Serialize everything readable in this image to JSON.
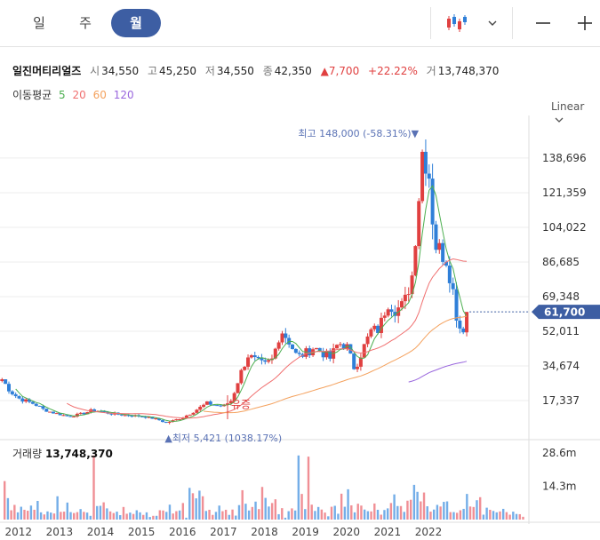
{
  "tabs": [
    {
      "label": "일",
      "active": false
    },
    {
      "label": "주",
      "active": false
    },
    {
      "label": "월",
      "active": true
    }
  ],
  "toolbar": {
    "chart_type_icon": "candlestick-icon",
    "dropdown_icon": "chevron-down-icon",
    "zoom_out_icon": "minus-icon",
    "zoom_in_icon": "plus-icon"
  },
  "stock": {
    "name": "일진머티리얼즈",
    "open_label": "시",
    "open": "34,550",
    "high_label": "고",
    "high": "45,250",
    "low_label": "저",
    "low": "34,550",
    "close_label": "종",
    "close": "42,350",
    "change": "7,700",
    "change_pct": "+22.22%",
    "volume_label": "거",
    "volume": "13,748,370"
  },
  "ma": {
    "label": "이동평균",
    "p5": "5",
    "p20": "20",
    "p60": "60",
    "p120": "120"
  },
  "scale": {
    "label": "Linear"
  },
  "colors": {
    "up": "#e04040",
    "down": "#2f7fd8",
    "ma5": "#4caf50",
    "ma20": "#f07070",
    "ma60": "#f4a15d",
    "ma120": "#9966dd",
    "accent": "#3d5ea3"
  },
  "annotations": {
    "high": "최고 148,000 (-58.31%)",
    "low": "최저 5,421 (1038.17%)",
    "rights": "유증",
    "current_price": "61,700"
  },
  "chart_data": {
    "type": "candlestick",
    "title": "일진머티리얼즈",
    "x_ticks": [
      "2012",
      "2013",
      "2014",
      "2015",
      "2016",
      "2017",
      "2018",
      "2019",
      "2020",
      "2021",
      "2022"
    ],
    "y_ticks": [
      17337,
      34674,
      52011,
      69348,
      86685,
      104022,
      121359,
      138696
    ],
    "y_tick_labels": [
      "17,337",
      "34,674",
      "52,011",
      "69,348",
      "86,685",
      "104,022",
      "121,359",
      "138,696"
    ],
    "ylim": [
      0,
      160000
    ],
    "x_range": [
      2011.55,
      2024.45
    ],
    "monthly_close": [
      [
        2011.6,
        28000
      ],
      [
        2011.8,
        22000
      ],
      [
        2012.0,
        18500
      ],
      [
        2012.2,
        17000
      ],
      [
        2012.4,
        15500
      ],
      [
        2012.6,
        13000
      ],
      [
        2012.8,
        11500
      ],
      [
        2013.0,
        10500
      ],
      [
        2013.2,
        9500
      ],
      [
        2013.4,
        10000
      ],
      [
        2013.6,
        11000
      ],
      [
        2013.8,
        12500
      ],
      [
        2014.0,
        12000
      ],
      [
        2014.2,
        11000
      ],
      [
        2014.4,
        10500
      ],
      [
        2014.6,
        10000
      ],
      [
        2014.8,
        9800
      ],
      [
        2015.0,
        9500
      ],
      [
        2015.2,
        8800
      ],
      [
        2015.4,
        7800
      ],
      [
        2015.6,
        6200
      ],
      [
        2015.8,
        7500
      ],
      [
        2016.0,
        8800
      ],
      [
        2016.2,
        11000
      ],
      [
        2016.4,
        13500
      ],
      [
        2016.6,
        16000
      ],
      [
        2016.8,
        15000
      ],
      [
        2017.0,
        14500
      ],
      [
        2017.2,
        17500
      ],
      [
        2017.4,
        30000
      ],
      [
        2017.6,
        40000
      ],
      [
        2017.8,
        37000
      ],
      [
        2018.0,
        35000
      ],
      [
        2018.2,
        38000
      ],
      [
        2018.4,
        53000
      ],
      [
        2018.6,
        47000
      ],
      [
        2018.8,
        39000
      ],
      [
        2019.0,
        41000
      ],
      [
        2019.2,
        44000
      ],
      [
        2019.4,
        41500
      ],
      [
        2019.6,
        38500
      ],
      [
        2019.8,
        46000
      ],
      [
        2020.0,
        45000
      ],
      [
        2020.2,
        33000
      ],
      [
        2020.4,
        43000
      ],
      [
        2020.6,
        52000
      ],
      [
        2020.8,
        53000
      ],
      [
        2021.0,
        67000
      ],
      [
        2021.2,
        63000
      ],
      [
        2021.4,
        65000
      ],
      [
        2021.6,
        80000
      ],
      [
        2021.75,
        116000
      ],
      [
        2021.85,
        142000
      ],
      [
        2022.0,
        135000
      ],
      [
        2022.15,
        96000
      ],
      [
        2022.3,
        92000
      ],
      [
        2022.45,
        88000
      ],
      [
        2022.6,
        72000
      ],
      [
        2022.7,
        58000
      ],
      [
        2022.8,
        52000
      ],
      [
        2022.9,
        56000
      ],
      [
        2023.0,
        61700
      ]
    ],
    "ma_series": [
      {
        "name": "5",
        "period": 5
      },
      {
        "name": "20",
        "period": 20
      },
      {
        "name": "60",
        "period": 60
      },
      {
        "name": "120",
        "period": 120
      }
    ],
    "extremes": {
      "high": 148000,
      "high_x": 2021.85,
      "low": 5421,
      "low_x": 2015.7
    },
    "current": 61700,
    "volume": {
      "title": "거래량",
      "last": "13,748,370",
      "y_ticks": [
        "14.3m",
        "28.6m"
      ],
      "values": [
        16.5,
        9.2,
        4.0,
        6.3,
        3.1,
        5.5,
        4.2,
        3.8,
        6.0,
        4.2,
        8.0,
        3.1,
        2.2,
        3.5,
        3.0,
        2.6,
        10.0,
        3.3,
        3.4,
        7.3,
        3.2,
        2.8,
        3.2,
        4.5,
        3.3,
        3.0,
        1.6,
        27.5,
        5.8,
        5.9,
        7.4,
        4.8,
        3.5,
        2.8,
        3.4,
        1.9,
        5.4,
        2.5,
        3.0,
        2.4,
        4.0,
        3.1,
        2.0,
        3.1,
        1.1,
        1.6,
        1.6,
        4.0,
        3.9,
        3.3,
        6.4,
        2.6,
        3.6,
        3.9,
        7.1,
        0.8,
        13.6,
        11.3,
        9.1,
        12.4,
        10.0,
        3.7,
        4.2,
        2.0,
        3.3,
        6.0,
        3.6,
        4.2,
        2.0,
        4.3,
        1.7,
        6.2,
        12.6,
        6.8,
        3.9,
        5.4,
        7.7,
        4.5,
        14.0,
        9.3,
        5.6,
        7.1,
        8.7,
        2.3,
        4.9,
        0.8,
        3.6,
        4.8,
        3.9,
        27.5,
        11.0,
        4.5,
        27.0,
        6.4,
        3.7,
        5.4,
        4.3,
        3.0,
        1.4,
        5.5,
        5.9,
        2.5,
        11.1,
        5.5,
        13.0,
        6.1,
        3.1,
        6.8,
        6.0,
        4.3,
        3.6,
        3.5,
        6.9,
        4.2,
        2.1,
        4.1,
        4.8,
        7.1,
        10.8,
        5.8,
        5.8,
        3.3,
        8.1,
        8.5,
        14.9,
        11.9,
        7.8,
        11.6,
        5.7,
        3.4,
        4.3,
        6.3,
        5.6,
        7.6,
        7.8,
        3.2,
        3.2,
        2.9,
        4.0,
        4.6,
        11.0,
        5.6,
        5.4,
        8.3,
        9.6,
        2.1,
        5.1,
        4.2,
        3.7,
        3.1,
        3.5,
        4.6,
        3.2,
        2.1,
        3.4,
        2.4,
        2.3,
        1.2
      ]
    }
  }
}
